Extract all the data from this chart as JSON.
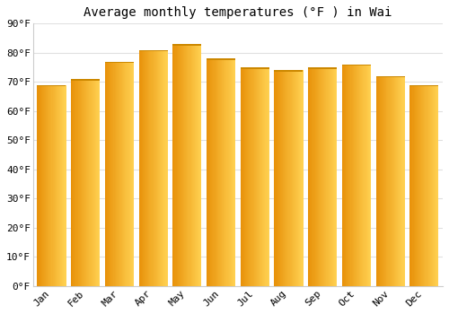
{
  "title": "Average monthly temperatures (°F ) in Wai",
  "months": [
    "Jan",
    "Feb",
    "Mar",
    "Apr",
    "May",
    "Jun",
    "Jul",
    "Aug",
    "Sep",
    "Oct",
    "Nov",
    "Dec"
  ],
  "values": [
    69,
    71,
    77,
    81,
    83,
    78,
    75,
    74,
    75,
    76,
    72,
    69
  ],
  "bar_color_left": "#E8920A",
  "bar_color_right": "#FFD050",
  "bar_color_mid": "#FDB827",
  "ylim": [
    0,
    90
  ],
  "yticks": [
    0,
    10,
    20,
    30,
    40,
    50,
    60,
    70,
    80,
    90
  ],
  "ytick_labels": [
    "0°F",
    "10°F",
    "20°F",
    "30°F",
    "40°F",
    "50°F",
    "60°F",
    "70°F",
    "80°F",
    "90°F"
  ],
  "background_color": "#ffffff",
  "grid_color": "#e0e0e0",
  "title_fontsize": 10,
  "tick_fontsize": 8,
  "font_family": "monospace",
  "bar_width": 0.85
}
